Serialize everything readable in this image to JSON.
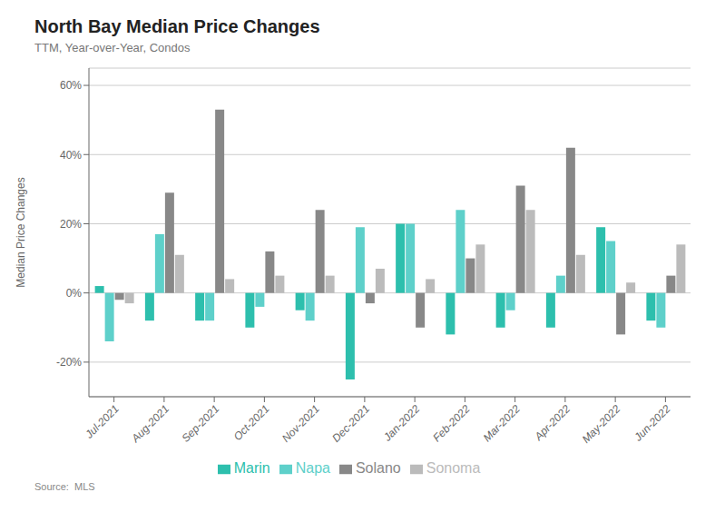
{
  "chart_data": {
    "type": "bar",
    "title": "North Bay Median Price Changes",
    "subtitle": "TTM, Year-over-Year, Condos",
    "ylabel": "Median Price Changes",
    "source": "Source:  MLS",
    "categories": [
      "Jul-2021",
      "Aug-2021",
      "Sep-2021",
      "Oct-2021",
      "Nov-2021",
      "Dec-2021",
      "Jan-2022",
      "Feb-2022",
      "Mar-2022",
      "Apr-2022",
      "May-2022",
      "Jun-2022"
    ],
    "series": [
      {
        "name": "Marin",
        "color": "#2dbfad",
        "values": [
          2,
          -8,
          -8,
          -10,
          -5,
          -25,
          20,
          -12,
          -10,
          -10,
          19,
          -8
        ]
      },
      {
        "name": "Napa",
        "color": "#5ed0ca",
        "values": [
          -14,
          17,
          -8,
          -4,
          -8,
          19,
          20,
          24,
          -5,
          5,
          15,
          -10
        ]
      },
      {
        "name": "Solano",
        "color": "#888888",
        "values": [
          -2,
          29,
          53,
          12,
          24,
          -3,
          -10,
          10,
          31,
          42,
          -12,
          5
        ]
      },
      {
        "name": "Sonoma",
        "color": "#bbbbbb",
        "values": [
          -3,
          11,
          4,
          5,
          5,
          7,
          4,
          14,
          24,
          11,
          3,
          14
        ]
      }
    ],
    "ylim": [
      -30,
      65
    ],
    "yticks": [
      {
        "value": -20,
        "label": "-20%"
      },
      {
        "value": 0,
        "label": "0%"
      },
      {
        "value": 20,
        "label": "20%"
      },
      {
        "value": 40,
        "label": "40%"
      },
      {
        "value": 60,
        "label": "60%"
      }
    ],
    "grid": true,
    "legend": "bottom"
  }
}
